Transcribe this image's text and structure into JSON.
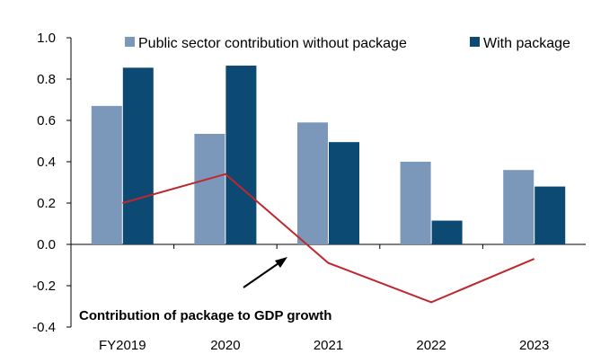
{
  "chart_data": {
    "type": "bar",
    "categories": [
      "FY2019",
      "2020",
      "2021",
      "2022",
      "2023"
    ],
    "ylim": [
      -0.4,
      1.0
    ],
    "yticks": [
      "1.0",
      "0.8",
      "0.6",
      "0.4",
      "0.2",
      "0.0",
      "-0.2",
      "-0.4"
    ],
    "series": [
      {
        "name": "Public sector contribution without package",
        "kind": "bar",
        "color": "#7b98bb",
        "values": [
          0.67,
          0.535,
          0.59,
          0.4,
          0.36
        ]
      },
      {
        "name": "With package",
        "kind": "bar",
        "color": "#0c4a73",
        "values": [
          0.855,
          0.865,
          0.495,
          0.115,
          0.28
        ]
      },
      {
        "name": "Contribution of package to GDP growth",
        "kind": "line",
        "color": "#c0272d",
        "values": [
          0.2,
          0.34,
          -0.09,
          -0.28,
          -0.07
        ]
      }
    ],
    "annotation": "Contribution of package to GDP growth",
    "legend_position": "top",
    "grid": false
  }
}
